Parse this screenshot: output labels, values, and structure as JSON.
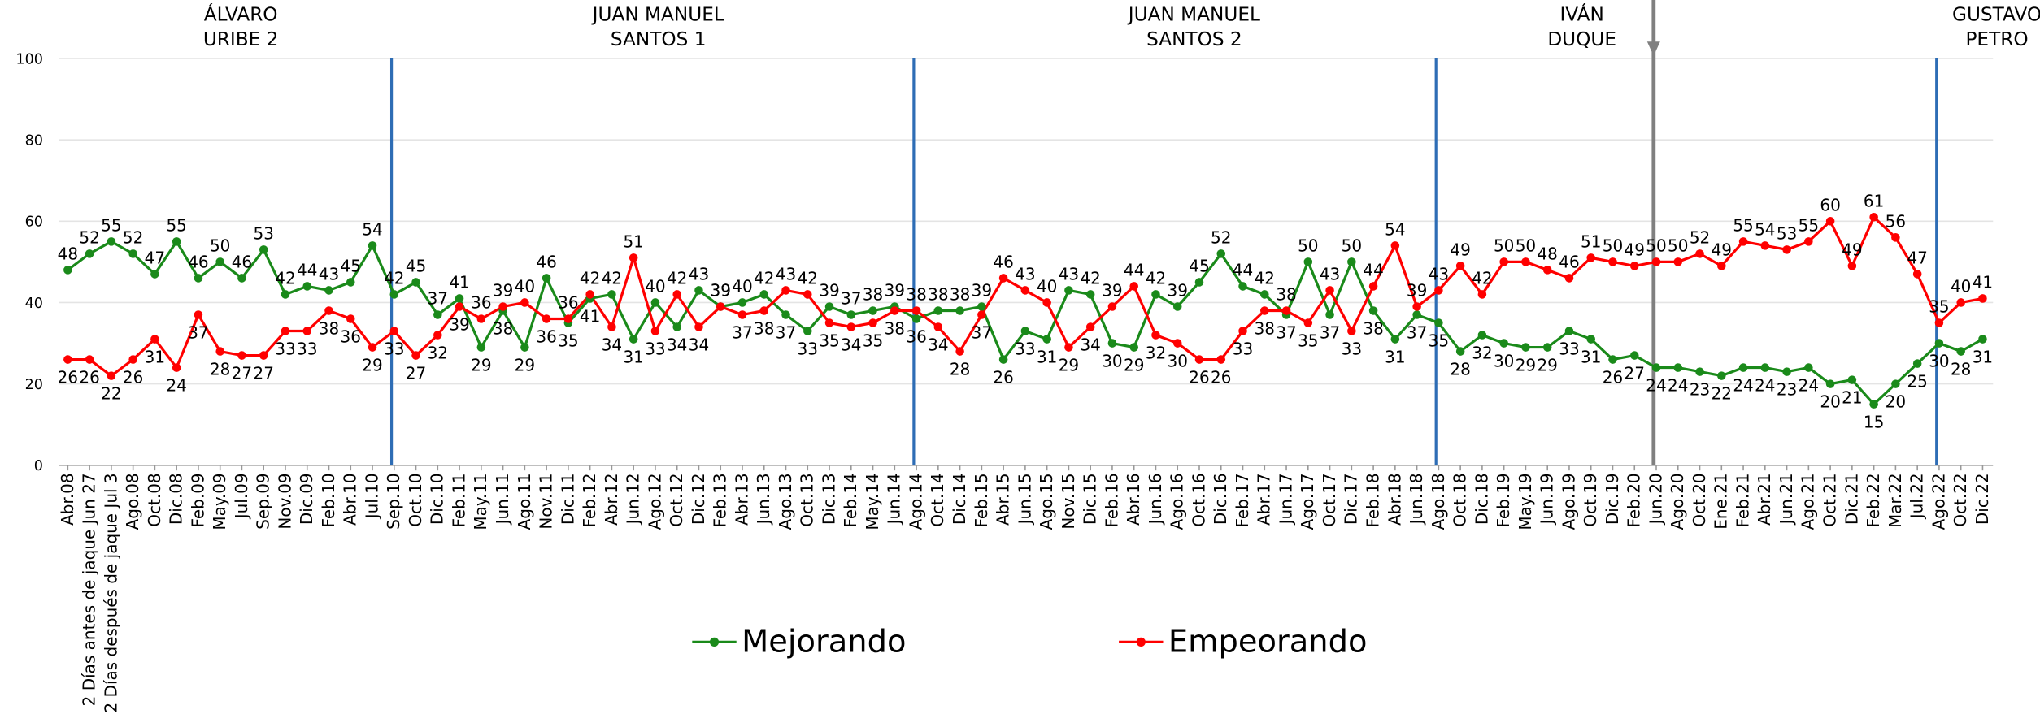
{
  "chart_data": {
    "type": "line",
    "periods": [
      {
        "label": [
          "ÁLVARO",
          "URIBE 2"
        ]
      },
      {
        "label": [
          "JUAN MANUEL",
          "SANTOS 1"
        ]
      },
      {
        "label": [
          "JUAN MANUEL",
          "SANTOS 2"
        ]
      },
      {
        "label": [
          "IVÁN",
          "DUQUE"
        ]
      },
      {
        "label": [
          "GUSTAVO",
          "PETRO"
        ]
      }
    ],
    "categories": [
      "Abr.08",
      "2 Días antes de jaque Jun 27",
      "2 Días después de jaque Jul 3",
      "Ago.08",
      "Oct.08",
      "Dic.08",
      "Feb.09",
      "May.09",
      "Jul.09",
      "Sep.09",
      "Nov.09",
      "Dic.09",
      "Feb.10",
      "Abr.10",
      "Jul.10",
      "Sep.10",
      "Oct.10",
      "Dic.10",
      "Feb.11",
      "May.11",
      "Jun.11",
      "Ago.11",
      "Nov.11",
      "Dic.11",
      "Feb.12",
      "Abr.12",
      "Jun.12",
      "Ago.12",
      "Oct.12",
      "Dic.12",
      "Feb.13",
      "Abr.13",
      "Jun.13",
      "Ago.13",
      "Oct.13",
      "Dic.13",
      "Feb.14",
      "May.14",
      "Jun.14",
      "Ago.14",
      "Oct.14",
      "Dic.14",
      "Feb.15",
      "Abr.15",
      "Jun.15",
      "Ago.15",
      "Nov.15",
      "Dic.15",
      "Feb.16",
      "Abr.16",
      "Jun.16",
      "Ago.16",
      "Oct.16",
      "Dic.16",
      "Feb.17",
      "Abr.17",
      "Jun.17",
      "Ago.17",
      "Oct.17",
      "Dic.17",
      "Feb.18",
      "Abr.18",
      "Jun.18",
      "Ago.18",
      "Oct.18",
      "Dic.18",
      "Feb.19",
      "May.19",
      "Jun.19",
      "Ago.19",
      "Oct.19",
      "Dic.19",
      "Feb.20",
      "Jun.20",
      "Ago.20",
      "Oct.20",
      "Ene.21",
      "Feb.21",
      "Abr.21",
      "Jun.21",
      "Ago.21",
      "Oct.21",
      "Dic.21",
      "Feb.22",
      "Mar.22",
      "Jul.22",
      "Ago.22",
      "Oct.22",
      "Dic.22"
    ],
    "series": [
      {
        "name": "Mejorando",
        "color": "#1a8a1a",
        "values": [
          48,
          52,
          55,
          52,
          47,
          55,
          46,
          50,
          46,
          53,
          42,
          44,
          43,
          45,
          54,
          42,
          45,
          37,
          41,
          29,
          38,
          29,
          46,
          35,
          41,
          42,
          31,
          40,
          34,
          43,
          39,
          40,
          42,
          37,
          33,
          39,
          37,
          38,
          39,
          36,
          38,
          38,
          39,
          26,
          33,
          31,
          43,
          42,
          30,
          29,
          42,
          39,
          45,
          52,
          44,
          42,
          37,
          50,
          37,
          50,
          38,
          31,
          37,
          35,
          28,
          32,
          30,
          29,
          29,
          33,
          31,
          26,
          27,
          24,
          24,
          23,
          22,
          24,
          24,
          23,
          24,
          20,
          21,
          15,
          20,
          25,
          30,
          28,
          31
        ]
      },
      {
        "name": "Empeorando",
        "color": "#ff0000",
        "values": [
          26,
          26,
          22,
          26,
          31,
          24,
          37,
          28,
          27,
          27,
          33,
          33,
          38,
          36,
          29,
          33,
          27,
          32,
          39,
          36,
          39,
          40,
          36,
          36,
          42,
          34,
          51,
          33,
          42,
          34,
          39,
          37,
          38,
          43,
          42,
          35,
          34,
          35,
          38,
          38,
          34,
          28,
          37,
          46,
          43,
          40,
          29,
          34,
          39,
          44,
          32,
          30,
          26,
          26,
          33,
          38,
          38,
          35,
          43,
          33,
          44,
          54,
          39,
          43,
          49,
          42,
          50,
          50,
          48,
          46,
          51,
          50,
          49,
          50,
          50,
          52,
          49,
          55,
          54,
          53,
          55,
          60,
          49,
          61,
          56,
          47,
          35,
          40,
          41
        ]
      }
    ],
    "ylim": [
      0,
      100
    ],
    "yticks": [
      0,
      20,
      40,
      60,
      80,
      100
    ],
    "grid": true
  }
}
